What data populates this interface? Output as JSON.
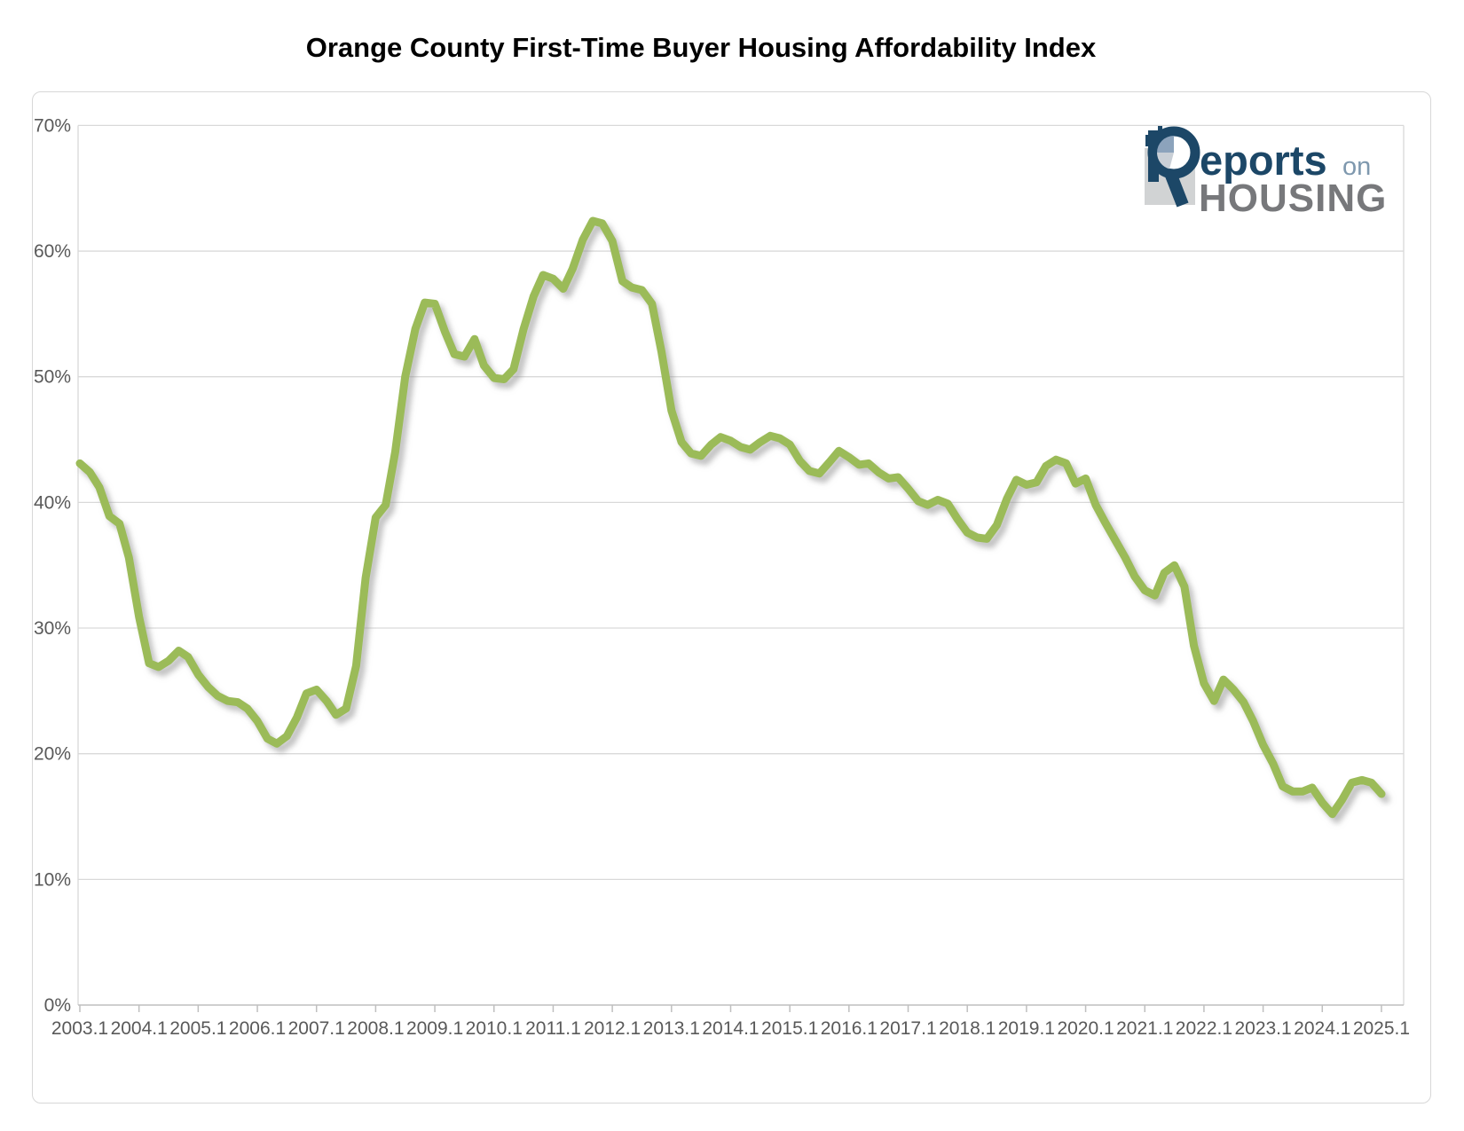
{
  "title": "Orange County First-Time Buyer Housing Affordability Index",
  "logo": {
    "reports": "eports",
    "on": "on",
    "housing": "HOUSING"
  },
  "colors": {
    "line": "#9BBB59",
    "line_shadow": "#9e9e9e",
    "gridline": "#d9d9d9",
    "axis": "#bfbfbf",
    "tick_label": "#595959",
    "title": "#000000",
    "logo_navy": "#1c4767",
    "logo_steel": "#7e98ae",
    "logo_gray": "#77787b",
    "logo_square": "#d1d3d4",
    "logo_pie_blue": "#8ca3bc",
    "logo_pie_gray": "#c9cfd6"
  },
  "chart_data": {
    "type": "line",
    "title": "Orange County First-Time Buyer Housing Affordability Index",
    "series_name": "First-Time Buyer Housing Affordability Index",
    "xlabel": "",
    "ylabel": "",
    "y_unit": "%",
    "ylim": [
      0,
      70
    ],
    "grid": "horizontal",
    "legend": "none",
    "x_tick_labels": [
      "2003.1",
      "2004.1",
      "2005.1",
      "2006.1",
      "2007.1",
      "2008.1",
      "2009.1",
      "2010.1",
      "2011.1",
      "2012.1",
      "2013.1",
      "2014.1",
      "2015.1",
      "2016.1",
      "2017.1",
      "2018.1",
      "2019.1",
      "2020.1",
      "2021.1",
      "2022.1",
      "2023.1",
      "2024.1",
      "2025.1"
    ],
    "y_tick_labels": [
      "0%",
      "10%",
      "20%",
      "30%",
      "40%",
      "50%",
      "60%",
      "70%"
    ],
    "points": [
      [
        2003.1,
        43.1
      ],
      [
        2003.27,
        42.4
      ],
      [
        2003.43,
        41.2
      ],
      [
        2003.6,
        38.9
      ],
      [
        2003.77,
        38.3
      ],
      [
        2003.93,
        35.6
      ],
      [
        2004.1,
        30.9
      ],
      [
        2004.27,
        27.2
      ],
      [
        2004.43,
        26.9
      ],
      [
        2004.6,
        27.4
      ],
      [
        2004.77,
        28.2
      ],
      [
        2004.93,
        27.7
      ],
      [
        2005.1,
        26.3
      ],
      [
        2005.27,
        25.3
      ],
      [
        2005.43,
        24.6
      ],
      [
        2005.6,
        24.2
      ],
      [
        2005.77,
        24.1
      ],
      [
        2005.93,
        23.6
      ],
      [
        2006.1,
        22.6
      ],
      [
        2006.27,
        21.2
      ],
      [
        2006.43,
        20.8
      ],
      [
        2006.6,
        21.4
      ],
      [
        2006.77,
        22.9
      ],
      [
        2006.93,
        24.8
      ],
      [
        2007.1,
        25.1
      ],
      [
        2007.27,
        24.2
      ],
      [
        2007.43,
        23.1
      ],
      [
        2007.6,
        23.6
      ],
      [
        2007.77,
        27.0
      ],
      [
        2007.93,
        34.0
      ],
      [
        2008.1,
        38.8
      ],
      [
        2008.27,
        39.8
      ],
      [
        2008.43,
        44.0
      ],
      [
        2008.6,
        50.0
      ],
      [
        2008.77,
        53.8
      ],
      [
        2008.93,
        55.9
      ],
      [
        2009.1,
        55.8
      ],
      [
        2009.27,
        53.6
      ],
      [
        2009.43,
        51.8
      ],
      [
        2009.6,
        51.6
      ],
      [
        2009.77,
        53.0
      ],
      [
        2009.93,
        50.9
      ],
      [
        2010.1,
        49.9
      ],
      [
        2010.27,
        49.8
      ],
      [
        2010.43,
        50.6
      ],
      [
        2010.6,
        53.8
      ],
      [
        2010.77,
        56.4
      ],
      [
        2010.93,
        58.1
      ],
      [
        2011.1,
        57.8
      ],
      [
        2011.27,
        57.0
      ],
      [
        2011.43,
        58.6
      ],
      [
        2011.6,
        60.9
      ],
      [
        2011.77,
        62.4
      ],
      [
        2011.93,
        62.2
      ],
      [
        2012.1,
        60.8
      ],
      [
        2012.27,
        57.6
      ],
      [
        2012.43,
        57.1
      ],
      [
        2012.6,
        56.9
      ],
      [
        2012.77,
        55.8
      ],
      [
        2012.93,
        52.0
      ],
      [
        2013.1,
        47.3
      ],
      [
        2013.27,
        44.8
      ],
      [
        2013.43,
        43.9
      ],
      [
        2013.6,
        43.7
      ],
      [
        2013.77,
        44.6
      ],
      [
        2013.93,
        45.2
      ],
      [
        2014.1,
        44.9
      ],
      [
        2014.27,
        44.4
      ],
      [
        2014.43,
        44.2
      ],
      [
        2014.6,
        44.8
      ],
      [
        2014.77,
        45.3
      ],
      [
        2014.93,
        45.1
      ],
      [
        2015.1,
        44.6
      ],
      [
        2015.27,
        43.3
      ],
      [
        2015.43,
        42.5
      ],
      [
        2015.6,
        42.3
      ],
      [
        2015.77,
        43.2
      ],
      [
        2015.93,
        44.1
      ],
      [
        2016.1,
        43.6
      ],
      [
        2016.27,
        43.0
      ],
      [
        2016.43,
        43.1
      ],
      [
        2016.6,
        42.4
      ],
      [
        2016.77,
        41.9
      ],
      [
        2016.93,
        42.0
      ],
      [
        2017.1,
        41.1
      ],
      [
        2017.27,
        40.1
      ],
      [
        2017.43,
        39.8
      ],
      [
        2017.6,
        40.2
      ],
      [
        2017.77,
        39.9
      ],
      [
        2017.93,
        38.7
      ],
      [
        2018.1,
        37.6
      ],
      [
        2018.27,
        37.2
      ],
      [
        2018.43,
        37.1
      ],
      [
        2018.6,
        38.2
      ],
      [
        2018.77,
        40.3
      ],
      [
        2018.93,
        41.8
      ],
      [
        2019.1,
        41.4
      ],
      [
        2019.27,
        41.6
      ],
      [
        2019.43,
        42.9
      ],
      [
        2019.6,
        43.4
      ],
      [
        2019.77,
        43.1
      ],
      [
        2019.93,
        41.5
      ],
      [
        2020.1,
        41.9
      ],
      [
        2020.27,
        39.8
      ],
      [
        2020.43,
        38.4
      ],
      [
        2020.6,
        37.0
      ],
      [
        2020.77,
        35.6
      ],
      [
        2020.93,
        34.1
      ],
      [
        2021.1,
        33.0
      ],
      [
        2021.27,
        32.6
      ],
      [
        2021.43,
        34.4
      ],
      [
        2021.6,
        35.0
      ],
      [
        2021.77,
        33.3
      ],
      [
        2021.93,
        28.6
      ],
      [
        2022.1,
        25.6
      ],
      [
        2022.27,
        24.2
      ],
      [
        2022.43,
        25.9
      ],
      [
        2022.6,
        25.1
      ],
      [
        2022.77,
        24.1
      ],
      [
        2022.93,
        22.6
      ],
      [
        2023.1,
        20.7
      ],
      [
        2023.27,
        19.2
      ],
      [
        2023.43,
        17.4
      ],
      [
        2023.6,
        17.0
      ],
      [
        2023.77,
        17.0
      ],
      [
        2023.93,
        17.3
      ],
      [
        2024.1,
        16.1
      ],
      [
        2024.27,
        15.2
      ],
      [
        2024.43,
        16.3
      ],
      [
        2024.6,
        17.7
      ],
      [
        2024.77,
        17.9
      ],
      [
        2024.93,
        17.7
      ],
      [
        2025.1,
        16.8
      ]
    ]
  }
}
